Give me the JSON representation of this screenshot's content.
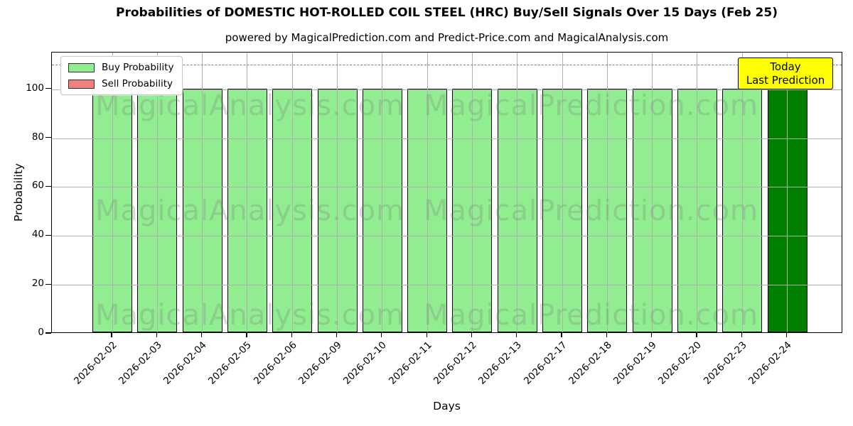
{
  "header": {
    "title": "Probabilities of DOMESTIC HOT-ROLLED COIL STEEL (HRC) Buy/Sell Signals Over 15 Days (Feb 25)",
    "subtitle": "powered by MagicalPrediction.com and Predict-Price.com and MagicalAnalysis.com"
  },
  "chart_data": {
    "type": "bar",
    "title": "Probabilities of DOMESTIC HOT-ROLLED COIL STEEL (HRC) Buy/Sell Signals Over 15 Days (Feb 25)",
    "subtitle": "powered by MagicalPrediction.com and Predict-Price.com and MagicalAnalysis.com",
    "xlabel": "Days",
    "ylabel": "Probability",
    "categories": [
      "2026-02-02",
      "2026-02-03",
      "2026-02-04",
      "2026-02-05",
      "2026-02-06",
      "2026-02-09",
      "2026-02-10",
      "2026-02-11",
      "2026-02-12",
      "2026-02-13",
      "2026-02-17",
      "2026-02-18",
      "2026-02-19",
      "2026-02-20",
      "2026-02-23",
      "2026-02-24"
    ],
    "series": [
      {
        "name": "Buy Probability",
        "color": "#90EE90",
        "values": [
          100,
          100,
          100,
          100,
          100,
          100,
          100,
          100,
          100,
          100,
          100,
          100,
          100,
          100,
          100,
          100
        ]
      },
      {
        "name": "Sell Probability",
        "color": "#F08080",
        "values": [
          0,
          0,
          0,
          0,
          0,
          0,
          0,
          0,
          0,
          0,
          0,
          0,
          0,
          0,
          0,
          0
        ]
      }
    ],
    "today_bar": {
      "index": 15,
      "color": "#008000"
    },
    "ylim": [
      0,
      115
    ],
    "yticks": [
      0,
      20,
      40,
      60,
      80,
      100
    ],
    "dashed_line_y": 110,
    "grid": true,
    "legend_position": "upper-left",
    "annotation": {
      "line1": "Today",
      "line2": "Last Prediction",
      "bg_color": "#FFFF00"
    },
    "watermark_left": "MagicalAnalysis.com",
    "watermark_right": "MagicalPrediction.com",
    "colors": {
      "axis": "#000000",
      "grid": "#b0b0b0",
      "dashed_line": "#7f7f7f"
    }
  }
}
